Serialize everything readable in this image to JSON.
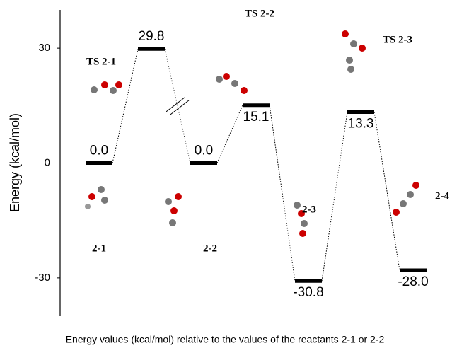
{
  "chart_data": {
    "type": "energy-profile",
    "y_label": "Energy (kcal/mol)",
    "caption": "Energy values (kcal/mol) relative to the values of the reactants 2-1 or 2-2",
    "categories": [
      "2-1",
      "TS 2-1",
      "2-2",
      "TS 2-2",
      "2-3",
      "TS 2-3",
      "2-4"
    ],
    "values": [
      0.0,
      29.8,
      0.0,
      15.1,
      -30.8,
      13.3,
      -28.0
    ],
    "value_labels": [
      "0.0",
      "29.8",
      "0.0",
      "15.1",
      "-30.8",
      "13.3",
      "-28.0"
    ],
    "color": "#000000",
    "ylim": [
      -40,
      40
    ],
    "yticks": [
      -30,
      0,
      30
    ]
  }
}
